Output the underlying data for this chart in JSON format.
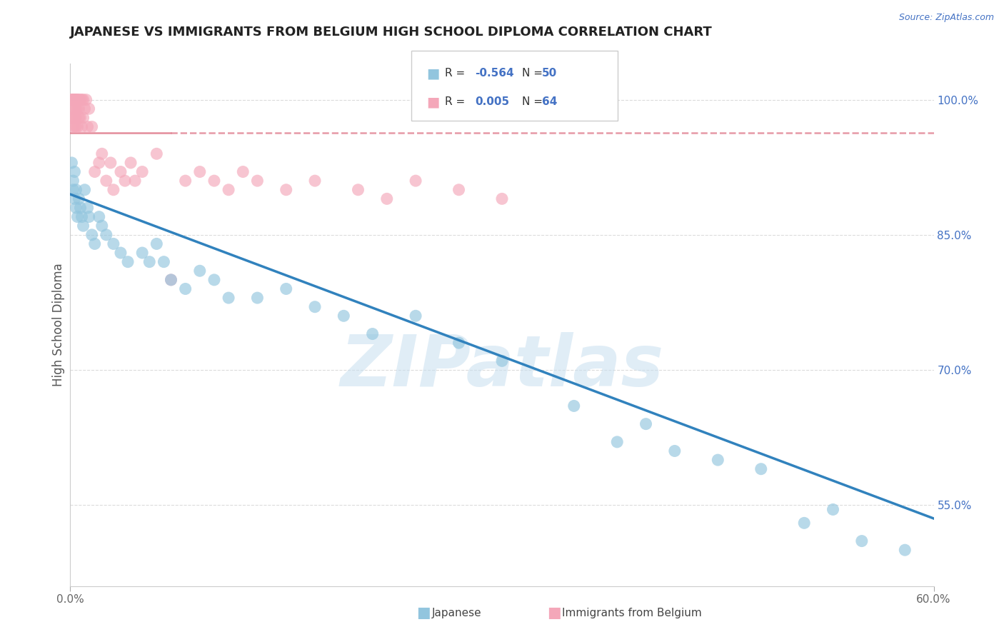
{
  "title": "JAPANESE VS IMMIGRANTS FROM BELGIUM HIGH SCHOOL DIPLOMA CORRELATION CHART",
  "source": "Source: ZipAtlas.com",
  "ylabel": "High School Diploma",
  "xlim": [
    0.0,
    0.6
  ],
  "ylim": [
    0.46,
    1.04
  ],
  "yticks_right": [
    1.0,
    0.85,
    0.7,
    0.55
  ],
  "ytick_right_labels": [
    "100.0%",
    "85.0%",
    "70.0%",
    "55.0%"
  ],
  "watermark": "ZIPatlas",
  "blue_color": "#92c5de",
  "pink_color": "#f4a7b9",
  "trendline_blue": "#3182bd",
  "trendline_pink": "#e08090",
  "background_color": "#ffffff",
  "grid_color": "#cccccc",
  "legend_label1": "Japanese",
  "legend_label2": "Immigrants from Belgium",
  "japanese_x": [
    0.001,
    0.002,
    0.002,
    0.003,
    0.003,
    0.004,
    0.004,
    0.005,
    0.006,
    0.007,
    0.008,
    0.009,
    0.01,
    0.012,
    0.013,
    0.015,
    0.017,
    0.02,
    0.022,
    0.025,
    0.03,
    0.035,
    0.04,
    0.05,
    0.055,
    0.06,
    0.065,
    0.07,
    0.08,
    0.09,
    0.1,
    0.11,
    0.13,
    0.15,
    0.17,
    0.19,
    0.21,
    0.24,
    0.27,
    0.3,
    0.35,
    0.38,
    0.4,
    0.42,
    0.45,
    0.48,
    0.51,
    0.53,
    0.55,
    0.58
  ],
  "japanese_y": [
    0.93,
    0.91,
    0.9,
    0.89,
    0.92,
    0.88,
    0.9,
    0.87,
    0.89,
    0.88,
    0.87,
    0.86,
    0.9,
    0.88,
    0.87,
    0.85,
    0.84,
    0.87,
    0.86,
    0.85,
    0.84,
    0.83,
    0.82,
    0.83,
    0.82,
    0.84,
    0.82,
    0.8,
    0.79,
    0.81,
    0.8,
    0.78,
    0.78,
    0.79,
    0.77,
    0.76,
    0.74,
    0.76,
    0.73,
    0.71,
    0.66,
    0.62,
    0.64,
    0.61,
    0.6,
    0.59,
    0.53,
    0.545,
    0.51,
    0.5
  ],
  "belgium_x": [
    0.001,
    0.001,
    0.001,
    0.002,
    0.002,
    0.002,
    0.002,
    0.002,
    0.002,
    0.003,
    0.003,
    0.003,
    0.003,
    0.003,
    0.003,
    0.004,
    0.004,
    0.004,
    0.004,
    0.004,
    0.005,
    0.005,
    0.005,
    0.005,
    0.006,
    0.006,
    0.006,
    0.007,
    0.007,
    0.008,
    0.008,
    0.009,
    0.009,
    0.01,
    0.011,
    0.012,
    0.013,
    0.015,
    0.017,
    0.02,
    0.022,
    0.025,
    0.028,
    0.03,
    0.035,
    0.038,
    0.042,
    0.045,
    0.05,
    0.06,
    0.07,
    0.08,
    0.09,
    0.1,
    0.11,
    0.12,
    0.13,
    0.15,
    0.17,
    0.2,
    0.22,
    0.24,
    0.27,
    0.3
  ],
  "belgium_y": [
    1.0,
    1.0,
    0.98,
    1.0,
    1.0,
    0.99,
    1.0,
    0.98,
    0.97,
    1.0,
    1.0,
    0.99,
    0.98,
    1.0,
    0.97,
    1.0,
    1.0,
    0.99,
    0.98,
    0.97,
    1.0,
    1.0,
    0.99,
    0.97,
    1.0,
    0.99,
    0.98,
    1.0,
    0.98,
    1.0,
    0.97,
    1.0,
    0.98,
    0.99,
    1.0,
    0.97,
    0.99,
    0.97,
    0.92,
    0.93,
    0.94,
    0.91,
    0.93,
    0.9,
    0.92,
    0.91,
    0.93,
    0.91,
    0.92,
    0.94,
    0.8,
    0.91,
    0.92,
    0.91,
    0.9,
    0.92,
    0.91,
    0.9,
    0.91,
    0.9,
    0.89,
    0.91,
    0.9,
    0.89
  ],
  "trendline_blue_x0": 0.0,
  "trendline_blue_y0": 0.895,
  "trendline_blue_x1": 0.6,
  "trendline_blue_y1": 0.535,
  "trendline_pink_y": 0.963
}
